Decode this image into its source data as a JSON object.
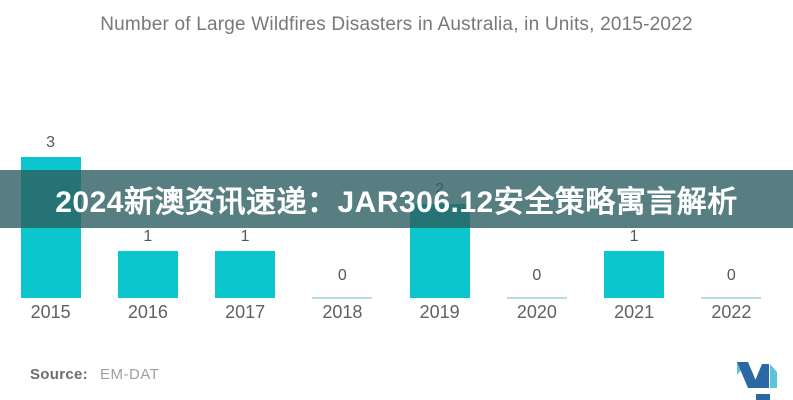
{
  "title": "Number of Large Wildfires Disasters in Australia, in Units, 2015-2022",
  "overlay_banner": {
    "text": "2024新澳资讯速递：JAR306.12安全策略寓言解析",
    "background_color": "#2d5e60",
    "text_color": "#ffffff"
  },
  "chart_data": {
    "type": "bar",
    "title": "Number of Large Wildfires Disasters in Australia, in Units, 2015-2022",
    "categories": [
      "2015",
      "2016",
      "2017",
      "2018",
      "2019",
      "2020",
      "2021",
      "2022"
    ],
    "values": [
      3,
      1,
      1,
      0,
      2,
      0,
      1,
      0
    ],
    "xlabel": "",
    "ylabel": "",
    "ylim": [
      0,
      3
    ],
    "grid": false,
    "legend": false,
    "value_labels_shown": true,
    "bar_color": "#0cc6cd",
    "zero_marker_color": "#b8dbe8"
  },
  "footer": {
    "source_label": "Source:",
    "source_value": "EM-DAT"
  },
  "logo": {
    "name": "mordor-intelligence-logo-mark",
    "color_dark": "#2b67a4",
    "color_light": "#5ac5d6"
  }
}
